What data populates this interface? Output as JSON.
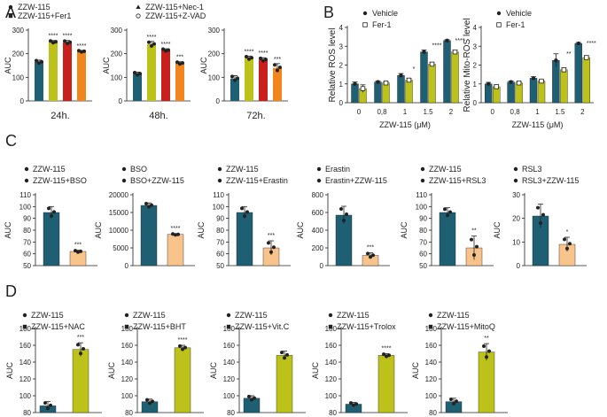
{
  "colors": {
    "teal": "#1f5f73",
    "olive": "#bcc21a",
    "red": "#c8201c",
    "orange": "#f2861e",
    "peach": "#f9c38c",
    "dark": "#222222",
    "grey": "#9a9a9a"
  },
  "chart_data": [
    {
      "panel": "A",
      "type": "bar",
      "title": "24h.",
      "ylabel": "AUC",
      "categories": [
        "ZZW-115",
        "ZZW-115+Fer1",
        "ZZW-115+Nec-1",
        "ZZW-115+Z-VAD"
      ],
      "values": [
        165,
        250,
        248,
        210
      ],
      "errors": [
        8,
        6,
        8,
        4
      ],
      "significance": [
        "",
        "****",
        "****",
        "****"
      ],
      "ylim": [
        0,
        300
      ],
      "yticks": [
        "0",
        "100",
        "200",
        "300"
      ],
      "legend": [
        "ZZW-115",
        "ZZW-115+Fer1",
        "ZZW-115+Nec-1",
        "ZZW-115+Z-VAD"
      ]
    },
    {
      "panel": "A",
      "type": "bar",
      "title": "48h.",
      "ylabel": "AUC",
      "categories": [
        "ZZW-115",
        "ZZW-115+Fer1",
        "ZZW-115+Nec-1",
        "ZZW-115+Z-VAD"
      ],
      "values": [
        115,
        240,
        215,
        160
      ],
      "errors": [
        7,
        12,
        6,
        6
      ],
      "significance": [
        "",
        "****",
        "****",
        "***"
      ],
      "ylim": [
        0,
        300
      ],
      "yticks": [
        "0",
        "100",
        "200",
        "300"
      ]
    },
    {
      "panel": "A",
      "type": "bar",
      "title": "72h.",
      "ylabel": "AUC",
      "categories": [
        "ZZW-115",
        "ZZW-115+Fer1",
        "ZZW-115+Nec-1",
        "ZZW-115+Z-VAD"
      ],
      "values": [
        95,
        182,
        175,
        140
      ],
      "errors": [
        12,
        8,
        8,
        18
      ],
      "significance": [
        "",
        "****",
        "****",
        "***"
      ],
      "ylim": [
        0,
        300
      ],
      "yticks": [
        "0",
        "100",
        "200",
        "300"
      ]
    },
    {
      "panel": "B",
      "type": "bar",
      "title": "",
      "ylabel": "Relative ROS level",
      "xlabel": "ZZW-115 (μM)",
      "categories": [
        "0",
        "0,8",
        "1",
        "1.5",
        "2"
      ],
      "series": [
        {
          "name": "Vehicle",
          "values": [
            1.0,
            1.1,
            1.45,
            2.7,
            3.3
          ],
          "errors": [
            0.1,
            0.05,
            0.1,
            0.1,
            0.05
          ]
        },
        {
          "name": "Fer-1",
          "values": [
            0.75,
            1.05,
            1.2,
            2.05,
            2.7
          ],
          "errors": [
            0.2,
            0.05,
            0.1,
            0.1,
            0.1
          ]
        }
      ],
      "significance": [
        "",
        "",
        "*",
        "****",
        "****"
      ],
      "ylim": [
        0,
        4
      ],
      "yticks": [
        "0",
        "1",
        "2",
        "3",
        "4"
      ],
      "legend": [
        "Vehicle",
        "Fer-1"
      ]
    },
    {
      "panel": "B",
      "type": "bar",
      "title": "",
      "ylabel": "Relative Mito-ROS level",
      "xlabel": "ZZW-115 (μM)",
      "categories": [
        "0",
        "0,8",
        "1",
        "1.5",
        "2"
      ],
      "series": [
        {
          "name": "Vehicle",
          "values": [
            1.0,
            1.1,
            1.3,
            2.25,
            3.15
          ],
          "errors": [
            0.08,
            0.05,
            0.08,
            0.35,
            0.05
          ]
        },
        {
          "name": "Fer-1",
          "values": [
            0.85,
            1.05,
            1.15,
            1.75,
            2.4
          ],
          "errors": [
            0.1,
            0.05,
            0.05,
            0.1,
            0.1
          ]
        }
      ],
      "significance": [
        "",
        "",
        "",
        "**",
        "****"
      ],
      "ylim": [
        0,
        4
      ],
      "yticks": [
        "0",
        "1",
        "2",
        "3",
        "4"
      ],
      "legend": [
        "Vehicle",
        "Fer-1"
      ]
    },
    {
      "panel": "C",
      "type": "bar",
      "ylabel": "AUC",
      "categories": [
        "ZZW-115",
        "ZZW-115+BSO"
      ],
      "values": [
        95,
        62
      ],
      "errors": [
        5,
        1
      ],
      "significance": [
        "",
        "***"
      ],
      "ylim": [
        50,
        110
      ],
      "yticks": [
        "50",
        "60",
        "70",
        "80",
        "90",
        "100",
        "110"
      ],
      "legend": [
        "ZZW-115",
        "ZZW-115+BSO"
      ]
    },
    {
      "panel": "C",
      "type": "bar",
      "ylabel": "AUC",
      "categories": [
        "BSO",
        "BSO+ZZW-115"
      ],
      "values": [
        17000,
        8800
      ],
      "errors": [
        700,
        200
      ],
      "significance": [
        "",
        "****"
      ],
      "ylim": [
        0,
        20000
      ],
      "yticks": [
        "0",
        "5000",
        "10000",
        "15000",
        "20000"
      ],
      "legend": [
        "BSO",
        "BSO+ZZW-115"
      ]
    },
    {
      "panel": "C",
      "type": "bar",
      "ylabel": "AUC",
      "categories": [
        "ZZW-115",
        "ZZW-115+Erastin"
      ],
      "values": [
        95,
        65
      ],
      "errors": [
        5,
        6
      ],
      "significance": [
        "",
        "***"
      ],
      "ylim": [
        50,
        110
      ],
      "yticks": [
        "50",
        "60",
        "70",
        "80",
        "90",
        "100",
        "110"
      ],
      "legend": [
        "ZZW-115",
        "ZZW-115+Erastin"
      ]
    },
    {
      "panel": "C",
      "type": "bar",
      "ylabel": "AUC",
      "categories": [
        "Erastin",
        "Erastin+ZZW-115"
      ],
      "values": [
        570,
        115
      ],
      "errors": [
        100,
        30
      ],
      "significance": [
        "",
        "***"
      ],
      "ylim": [
        0,
        800
      ],
      "yticks": [
        "0",
        "200",
        "400",
        "600",
        "800"
      ],
      "legend": [
        "Erastin",
        "Erastin+ZZW-115"
      ]
    },
    {
      "panel": "C",
      "type": "bar",
      "ylabel": "AUC",
      "categories": [
        "ZZW-115",
        "ZZW-115+RSL3"
      ],
      "values": [
        95,
        65
      ],
      "errors": [
        4,
        10
      ],
      "significance": [
        "",
        "**"
      ],
      "ylim": [
        50,
        110
      ],
      "yticks": [
        "50",
        "60",
        "70",
        "80",
        "90",
        "100",
        "110"
      ],
      "legend": [
        "ZZW-115",
        "ZZW-115+RSL3"
      ]
    },
    {
      "panel": "C",
      "type": "bar",
      "ylabel": "AUC",
      "categories": [
        "RSL3",
        "RSL3+ZZW-115"
      ],
      "values": [
        21,
        9
      ],
      "errors": [
        5,
        3
      ],
      "significance": [
        "",
        "*"
      ],
      "ylim": [
        0,
        30
      ],
      "yticks": [
        "0",
        "10",
        "20",
        "30"
      ],
      "legend": [
        "RSL3",
        "RSL3+ZZW-115"
      ]
    },
    {
      "panel": "D",
      "type": "bar",
      "ylabel": "AUC",
      "categories": [
        "ZZW-115",
        "ZZW-115+NAC"
      ],
      "values": [
        88,
        155
      ],
      "errors": [
        5,
        8
      ],
      "significance": [
        "",
        "***"
      ],
      "ylim": [
        80,
        180
      ],
      "yticks": [
        "80",
        "100",
        "120",
        "140",
        "160",
        "180"
      ],
      "legend": [
        "ZZW-115",
        "ZZW-115+NAC"
      ]
    },
    {
      "panel": "D",
      "type": "bar",
      "ylabel": "AUC",
      "categories": [
        "ZZW-115",
        "ZZW-115+BHT"
      ],
      "values": [
        93,
        157
      ],
      "errors": [
        3,
        3
      ],
      "significance": [
        "",
        "****"
      ],
      "ylim": [
        80,
        180
      ],
      "yticks": [
        "80",
        "100",
        "120",
        "140",
        "160",
        "180"
      ],
      "legend": [
        "ZZW-115",
        "ZZW-115+BHT"
      ]
    },
    {
      "panel": "D",
      "type": "bar",
      "ylabel": "AUC",
      "categories": [
        "ZZW-115",
        "ZZW-115+Vit.C"
      ],
      "values": [
        97,
        148
      ],
      "errors": [
        3,
        5
      ],
      "significance": [
        "",
        ""
      ],
      "ylim": [
        80,
        180
      ],
      "yticks": [
        "80",
        "100",
        "120",
        "140",
        "160",
        "180"
      ],
      "legend": [
        "ZZW-115",
        "ZZW-115+Vit.C"
      ]
    },
    {
      "panel": "D",
      "type": "bar",
      "ylabel": "AUC",
      "categories": [
        "ZZW-115",
        "ZZW-115+Trolox"
      ],
      "values": [
        90,
        148
      ],
      "errors": [
        2,
        2
      ],
      "significance": [
        "",
        "****"
      ],
      "ylim": [
        80,
        180
      ],
      "yticks": [
        "80",
        "100",
        "120",
        "140",
        "160",
        "180"
      ],
      "legend": [
        "ZZW-115",
        "ZZW-115+Trolox"
      ]
    },
    {
      "panel": "D",
      "type": "bar",
      "ylabel": "AUC",
      "categories": [
        "ZZW-115",
        "ZZW-115+MitoQ"
      ],
      "values": [
        93,
        152
      ],
      "errors": [
        4,
        10
      ],
      "significance": [
        "",
        "**"
      ],
      "ylim": [
        80,
        180
      ],
      "yticks": [
        "80",
        "100",
        "120",
        "140",
        "160",
        "180"
      ],
      "legend": [
        "ZZW-115",
        "ZZW-115+MitoQ"
      ]
    }
  ],
  "panel_labels": [
    "A",
    "B",
    "C",
    "D"
  ]
}
